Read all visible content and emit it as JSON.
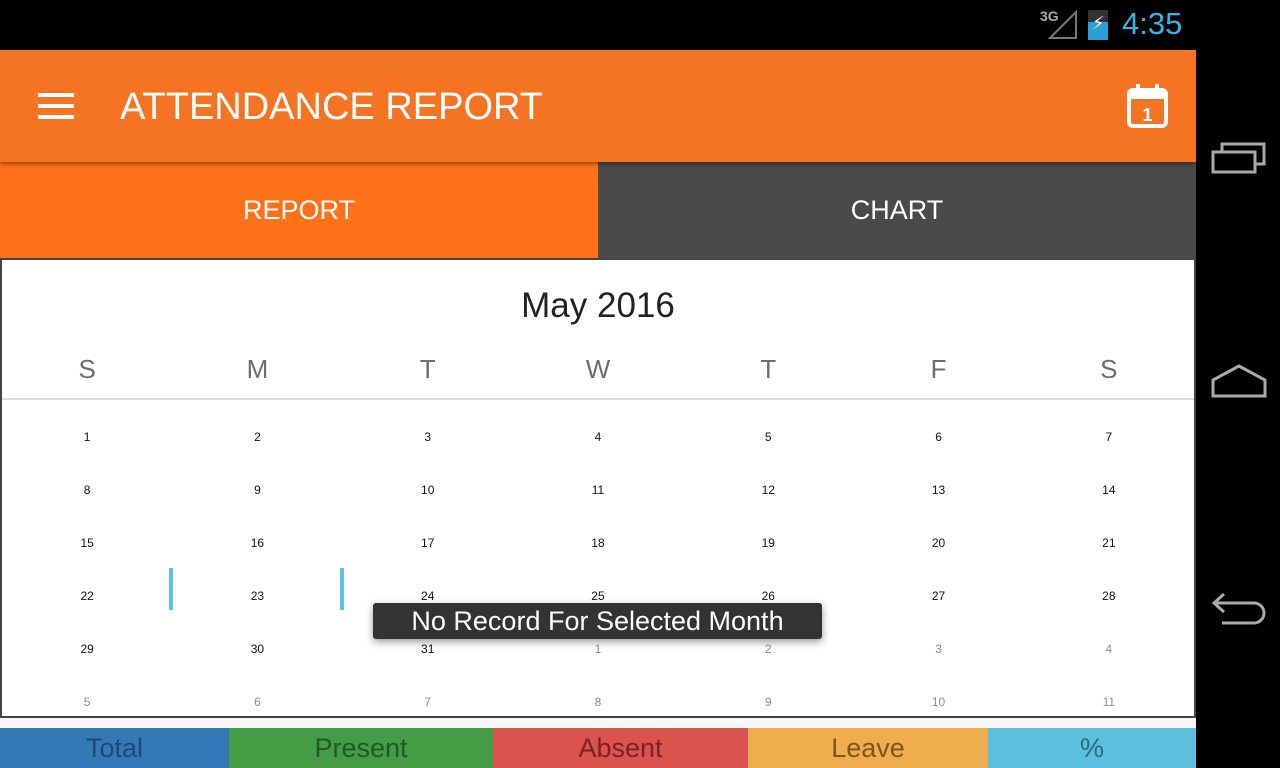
{
  "status": {
    "network": "3G",
    "time": "4:35"
  },
  "appbar": {
    "title": "ATTENDANCE REPORT",
    "calendar_day": "1"
  },
  "tabs": [
    {
      "label": "REPORT",
      "active": true
    },
    {
      "label": "CHART",
      "active": false
    }
  ],
  "calendar": {
    "month": "May 2016",
    "weekdays": [
      "S",
      "M",
      "T",
      "W",
      "T",
      "F",
      "S"
    ],
    "weeks": [
      [
        "1",
        "2",
        "3",
        "4",
        "5",
        "6",
        "7"
      ],
      [
        "8",
        "9",
        "10",
        "11",
        "12",
        "13",
        "14"
      ],
      [
        "15",
        "16",
        "17",
        "18",
        "19",
        "20",
        "21"
      ],
      [
        "22",
        "23",
        "24",
        "25",
        "26",
        "27",
        "28"
      ],
      [
        "29",
        "30",
        "31",
        "1",
        "2",
        "3",
        "4"
      ],
      [
        "5",
        "6",
        "7",
        "8",
        "9",
        "10",
        "11"
      ]
    ],
    "selected": "23"
  },
  "toast": "No Record For Selected Month",
  "legend": [
    {
      "label": "Total",
      "color": "#3478b5"
    },
    {
      "label": "Present",
      "color": "#449d45"
    },
    {
      "label": "Absent",
      "color": "#da534f"
    },
    {
      "label": "Leave",
      "color": "#f0ad4e"
    },
    {
      "label": "%",
      "color": "#5bc0de"
    }
  ],
  "colors": {
    "accent": "#f47423",
    "tab_active": "#fd7118",
    "tab_inactive": "#4a4a4a",
    "status_time": "#33b5e5"
  }
}
